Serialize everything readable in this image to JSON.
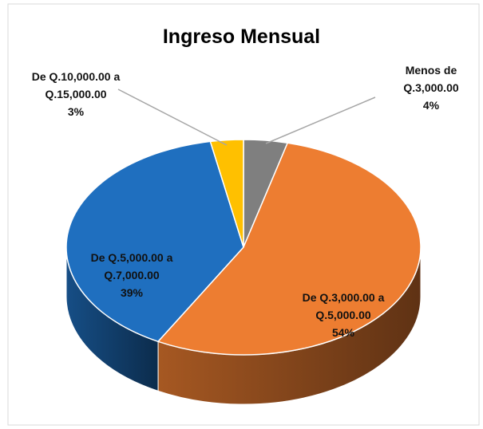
{
  "chart_data": {
    "type": "pie",
    "title": "Ingreso Mensual",
    "categories": [
      "Menos de Q.3,000.00",
      "De Q.3,000.00 a Q.5,000.00",
      "De Q.5,000.00 a Q.7,000.00",
      "De Q.10,000.00 a Q.15,000.00"
    ],
    "values": [
      4,
      54,
      39,
      3
    ],
    "value_labels": [
      "4%",
      "54%",
      "39%",
      "3%"
    ],
    "colors": [
      "#7f7f7f",
      "#ed7d31",
      "#1f6fbf",
      "#ffc000"
    ]
  }
}
